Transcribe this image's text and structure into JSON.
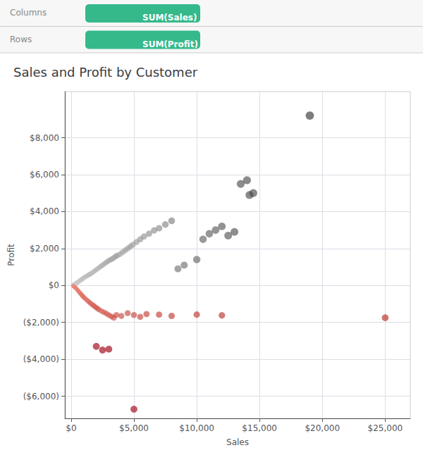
{
  "chart_data": {
    "type": "scatter",
    "title": "Sales and Profit by Customer",
    "xlabel": "Sales",
    "ylabel": "Profit",
    "annotations": [
      "Columns",
      "SUM(Sales)",
      "Rows",
      "SUM(Profit)"
    ],
    "xlim": [
      -500,
      27000
    ],
    "ylim": [
      -7200,
      10500
    ],
    "xticks": [
      {
        "value": 0,
        "label": "$0"
      },
      {
        "value": 5000,
        "label": "$5,000"
      },
      {
        "value": 10000,
        "label": "$10,000"
      },
      {
        "value": 15000,
        "label": "$15,000"
      },
      {
        "value": 20000,
        "label": "$20,000"
      },
      {
        "value": 25000,
        "label": "$25,000"
      }
    ],
    "yticks": [
      {
        "value": -6000,
        "label": "($6,000)"
      },
      {
        "value": -4000,
        "label": "($4,000)"
      },
      {
        "value": -2000,
        "label": "($2,000)"
      },
      {
        "value": 0,
        "label": "$0"
      },
      {
        "value": 2000,
        "label": "$2,000"
      },
      {
        "value": 4000,
        "label": "$4,000"
      },
      {
        "value": 6000,
        "label": "$6,000"
      },
      {
        "value": 8000,
        "label": "$8,000"
      }
    ],
    "grid": true,
    "x": [
      120,
      150,
      180,
      200,
      220,
      250,
      280,
      300,
      320,
      350,
      380,
      400,
      420,
      450,
      480,
      500,
      520,
      550,
      580,
      600,
      630,
      660,
      700,
      730,
      760,
      800,
      830,
      860,
      900,
      930,
      960,
      1000,
      1050,
      1100,
      1150,
      1200,
      1250,
      1300,
      1350,
      1400,
      1450,
      1500,
      1550,
      1600,
      1700,
      1800,
      1900,
      2000,
      2100,
      2200,
      2300,
      2400,
      2500,
      2600,
      2700,
      2800,
      2900,
      3000,
      3100,
      3200,
      3300,
      3400,
      3500,
      3600,
      3700,
      3900,
      4100,
      4300,
      4500,
      4700,
      4900,
      5200,
      5500,
      5800,
      6200,
      6600,
      7000,
      7500,
      8000,
      8500,
      9000,
      10000,
      10500,
      11000,
      11500,
      12000,
      12500,
      13000,
      13500,
      14000,
      14200,
      14500,
      19000,
      160,
      200,
      250,
      300,
      350,
      400,
      450,
      500,
      550,
      600,
      650,
      700,
      750,
      800,
      850,
      900,
      950,
      1000,
      1100,
      1200,
      1300,
      1400,
      1500,
      1600,
      1700,
      1800,
      1900,
      2000,
      2100,
      2200,
      2400,
      2600,
      2800,
      3000,
      3200,
      3400,
      3600,
      4000,
      4500,
      5000,
      5500,
      6000,
      7000,
      8000,
      10000,
      12000,
      25000,
      2000,
      2500,
      3000,
      5000
    ],
    "values": [
      15,
      25,
      10,
      40,
      30,
      60,
      80,
      90,
      70,
      100,
      120,
      130,
      110,
      140,
      160,
      170,
      150,
      180,
      200,
      210,
      220,
      240,
      260,
      280,
      290,
      310,
      330,
      340,
      360,
      380,
      390,
      410,
      430,
      450,
      470,
      490,
      510,
      530,
      550,
      570,
      590,
      610,
      630,
      650,
      700,
      750,
      800,
      850,
      900,
      950,
      1000,
      1050,
      1100,
      1150,
      1200,
      1250,
      1300,
      1350,
      1380,
      1420,
      1450,
      1500,
      1550,
      1590,
      1630,
      1700,
      1800,
      1900,
      2000,
      2100,
      2200,
      2350,
      2500,
      2650,
      2800,
      2980,
      3100,
      3300,
      3500,
      900,
      1100,
      1400,
      2500,
      2800,
      3000,
      3200,
      2700,
      2900,
      5500,
      5700,
      4900,
      5000,
      9200,
      -30,
      -50,
      -80,
      -100,
      -130,
      -160,
      -200,
      -240,
      -280,
      -320,
      -360,
      -400,
      -440,
      -480,
      -520,
      -560,
      -600,
      -640,
      -700,
      -760,
      -820,
      -880,
      -940,
      -1000,
      -1050,
      -1100,
      -1150,
      -1200,
      -1250,
      -1300,
      -1380,
      -1450,
      -1520,
      -1600,
      -1680,
      -1750,
      -1600,
      -1650,
      -1500,
      -1600,
      -1700,
      -1550,
      -1580,
      -1650,
      -1580,
      -1620,
      -1750,
      -3300,
      -3500,
      -3450,
      -6700
    ],
    "intensity": [
      0.02,
      0.02,
      0.02,
      0.03,
      0.02,
      0.03,
      0.03,
      0.04,
      0.03,
      0.04,
      0.04,
      0.04,
      0.04,
      0.05,
      0.05,
      0.05,
      0.05,
      0.05,
      0.06,
      0.06,
      0.06,
      0.06,
      0.07,
      0.07,
      0.07,
      0.07,
      0.07,
      0.08,
      0.08,
      0.08,
      0.08,
      0.09,
      0.09,
      0.09,
      0.1,
      0.1,
      0.1,
      0.11,
      0.11,
      0.12,
      0.12,
      0.12,
      0.13,
      0.13,
      0.14,
      0.15,
      0.15,
      0.16,
      0.17,
      0.17,
      0.18,
      0.19,
      0.2,
      0.2,
      0.21,
      0.22,
      0.23,
      0.24,
      0.24,
      0.25,
      0.26,
      0.26,
      0.27,
      0.28,
      0.29,
      0.3,
      0.31,
      0.32,
      0.33,
      0.34,
      0.35,
      0.37,
      0.39,
      0.41,
      0.43,
      0.45,
      0.47,
      0.5,
      0.53,
      0.6,
      0.63,
      0.7,
      0.72,
      0.74,
      0.76,
      0.78,
      0.8,
      0.82,
      0.84,
      0.86,
      0.88,
      0.88,
      1.0,
      -0.05,
      -0.06,
      -0.07,
      -0.08,
      -0.09,
      -0.1,
      -0.11,
      -0.12,
      -0.13,
      -0.14,
      -0.15,
      -0.16,
      -0.17,
      -0.18,
      -0.19,
      -0.2,
      -0.21,
      -0.22,
      -0.24,
      -0.26,
      -0.27,
      -0.29,
      -0.3,
      -0.32,
      -0.33,
      -0.35,
      -0.36,
      -0.37,
      -0.38,
      -0.39,
      -0.41,
      -0.43,
      -0.45,
      -0.47,
      -0.49,
      -0.51,
      -0.53,
      -0.55,
      -0.57,
      -0.59,
      -0.61,
      -0.63,
      -0.65,
      -0.67,
      -0.7,
      -0.73,
      -0.82,
      -0.91,
      -0.94,
      -0.94,
      -1.0
    ]
  }
}
